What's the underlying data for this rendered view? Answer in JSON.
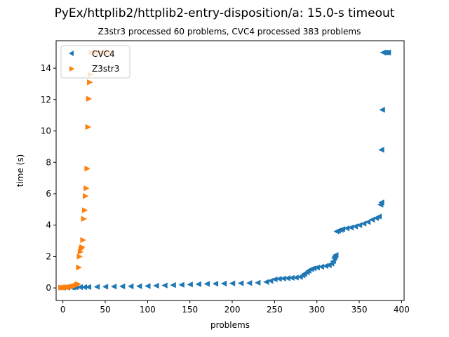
{
  "chart_data": {
    "type": "scatter",
    "title": "PyEx/httplib2/httplib2-entry-disposition/a: 15.0-s timeout",
    "subtitle": "Z3str3 processed 60 problems, CVC4 processed 383 problems",
    "xlabel": "problems",
    "ylabel": "time (s)",
    "xlim": [
      -8,
      403
    ],
    "ylim": [
      -0.8,
      15.75
    ],
    "xticks": [
      0,
      50,
      100,
      150,
      200,
      250,
      300,
      350,
      400
    ],
    "yticks": [
      0,
      2,
      4,
      6,
      8,
      10,
      12,
      14
    ],
    "grid": false,
    "legend_position": "top-left",
    "series": [
      {
        "name": "CVC4",
        "color": "#1f77b4",
        "marker": "triangle-left",
        "points": [
          [
            0,
            0.02
          ],
          [
            5,
            0.02
          ],
          [
            10,
            0.03
          ],
          [
            12,
            0.03
          ],
          [
            15,
            0.04
          ],
          [
            20,
            0.05
          ],
          [
            25,
            0.05
          ],
          [
            30,
            0.06
          ],
          [
            40,
            0.07
          ],
          [
            50,
            0.08
          ],
          [
            60,
            0.09
          ],
          [
            70,
            0.1
          ],
          [
            80,
            0.1
          ],
          [
            90,
            0.11
          ],
          [
            100,
            0.12
          ],
          [
            110,
            0.14
          ],
          [
            120,
            0.16
          ],
          [
            130,
            0.18
          ],
          [
            140,
            0.2
          ],
          [
            150,
            0.22
          ],
          [
            160,
            0.24
          ],
          [
            170,
            0.26
          ],
          [
            180,
            0.27
          ],
          [
            190,
            0.28
          ],
          [
            200,
            0.29
          ],
          [
            210,
            0.3
          ],
          [
            220,
            0.31
          ],
          [
            230,
            0.33
          ],
          [
            240,
            0.38
          ],
          [
            245,
            0.45
          ],
          [
            250,
            0.55
          ],
          [
            255,
            0.58
          ],
          [
            260,
            0.6
          ],
          [
            265,
            0.62
          ],
          [
            270,
            0.64
          ],
          [
            275,
            0.66
          ],
          [
            280,
            0.7
          ],
          [
            283,
            0.8
          ],
          [
            285,
            0.9
          ],
          [
            288,
            1.0
          ],
          [
            290,
            1.1
          ],
          [
            293,
            1.2
          ],
          [
            296,
            1.25
          ],
          [
            300,
            1.3
          ],
          [
            305,
            1.35
          ],
          [
            310,
            1.4
          ],
          [
            314,
            1.45
          ],
          [
            317,
            1.55
          ],
          [
            319,
            1.7
          ],
          [
            320,
            1.9
          ],
          [
            321,
            2.0
          ],
          [
            322,
            2.1
          ],
          [
            323,
            3.6
          ],
          [
            325,
            3.65
          ],
          [
            328,
            3.7
          ],
          [
            330,
            3.75
          ],
          [
            335,
            3.8
          ],
          [
            340,
            3.85
          ],
          [
            345,
            3.92
          ],
          [
            350,
            4.0
          ],
          [
            355,
            4.1
          ],
          [
            360,
            4.2
          ],
          [
            365,
            4.35
          ],
          [
            370,
            4.45
          ],
          [
            373,
            4.55
          ],
          [
            375,
            5.3
          ],
          [
            376,
            5.45
          ],
          [
            376,
            8.8
          ],
          [
            377,
            11.35
          ],
          [
            378,
            15.0
          ],
          [
            380,
            15.0
          ],
          [
            382,
            15.0
          ],
          [
            384,
            15.0
          ]
        ]
      },
      {
        "name": "Z3str3",
        "color": "#ff7f0e",
        "marker": "triangle-right",
        "points": [
          [
            -2,
            0.02
          ],
          [
            0,
            0.02
          ],
          [
            2,
            0.03
          ],
          [
            4,
            0.03
          ],
          [
            6,
            0.04
          ],
          [
            8,
            0.05
          ],
          [
            10,
            0.07
          ],
          [
            12,
            0.09
          ],
          [
            14,
            0.12
          ],
          [
            16,
            0.16
          ],
          [
            17,
            0.2
          ],
          [
            18,
            0.25
          ],
          [
            19,
            1.3
          ],
          [
            20,
            2.0
          ],
          [
            21,
            2.3
          ],
          [
            22,
            2.5
          ],
          [
            23,
            2.6
          ],
          [
            24,
            3.05
          ],
          [
            25,
            4.4
          ],
          [
            26,
            4.95
          ],
          [
            27,
            5.85
          ],
          [
            28,
            6.35
          ],
          [
            29,
            7.6
          ],
          [
            30,
            10.25
          ],
          [
            31,
            12.05
          ],
          [
            32,
            13.1
          ],
          [
            33,
            13.6
          ],
          [
            34,
            15.0
          ],
          [
            38,
            15.0
          ],
          [
            42,
            15.0
          ],
          [
            46,
            15.0
          ],
          [
            50,
            15.0
          ],
          [
            53,
            15.0
          ],
          [
            55,
            15.0
          ]
        ]
      }
    ]
  }
}
